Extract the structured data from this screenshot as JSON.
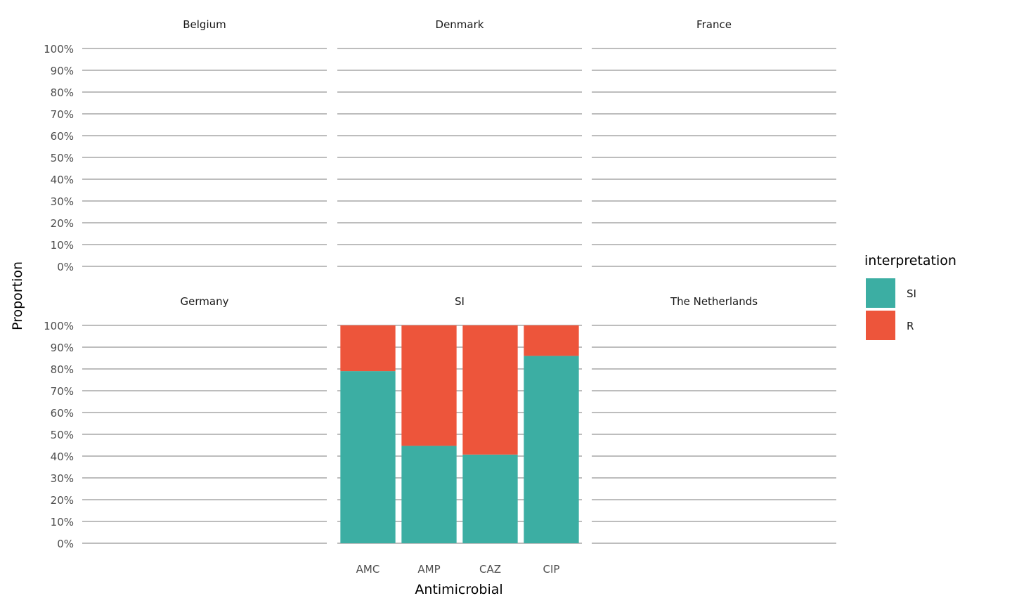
{
  "chart_data": {
    "type": "bar",
    "stacked": true,
    "facet_by": "country",
    "panels": [
      {
        "name": "Belgium",
        "categories": [],
        "series": []
      },
      {
        "name": "Denmark",
        "categories": [],
        "series": []
      },
      {
        "name": "France",
        "categories": [],
        "series": []
      },
      {
        "name": "Germany",
        "categories": [],
        "series": []
      },
      {
        "name": "SI",
        "categories": [
          "AMC",
          "AMP",
          "CAZ",
          "CIP"
        ],
        "series": [
          {
            "name": "SI",
            "values": [
              0.79,
              0.447,
              0.407,
              0.86
            ]
          },
          {
            "name": "R",
            "values": [
              0.21,
              0.553,
              0.593,
              0.14
            ]
          }
        ]
      },
      {
        "name": "The Netherlands",
        "categories": [],
        "series": []
      }
    ],
    "x_categories": [
      "AMC",
      "AMP",
      "CAZ",
      "CIP"
    ],
    "xlabel": "Antimicrobial",
    "ylabel": "Proportion",
    "ylim": [
      0,
      1
    ],
    "y_ticks": [
      "0%",
      "10%",
      "20%",
      "30%",
      "40%",
      "50%",
      "60%",
      "70%",
      "80%",
      "90%",
      "100%"
    ],
    "grid": true,
    "legend": {
      "title": "interpretation",
      "position": "right",
      "items": [
        {
          "label": "SI",
          "color": "#3CAEA3"
        },
        {
          "label": "R",
          "color": "#ED553B"
        }
      ]
    },
    "colors": {
      "SI": "#3CAEA3",
      "R": "#ED553B"
    }
  }
}
